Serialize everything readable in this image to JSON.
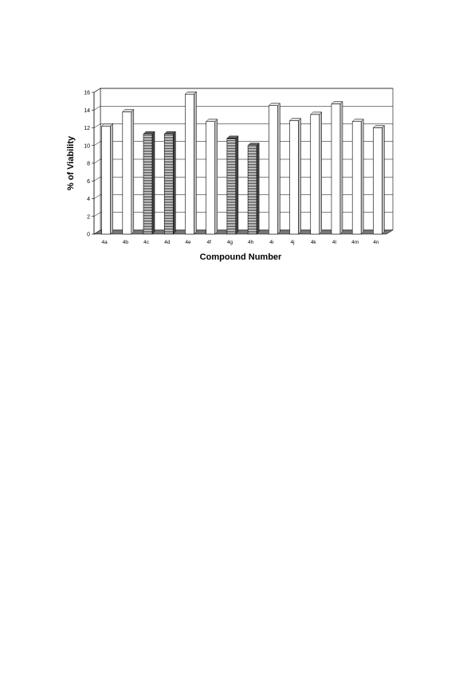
{
  "chart_data": {
    "type": "bar",
    "title": "",
    "xlabel": "Compound Number",
    "ylabel": "% of Viability",
    "ylim": [
      0,
      16
    ],
    "yticks": [
      0,
      2,
      4,
      6,
      8,
      10,
      12,
      14,
      16
    ],
    "grid": true,
    "style": "3d",
    "categories": [
      "4a",
      "4b",
      "4c",
      "4d",
      "4e",
      "4f",
      "4g",
      "4h",
      "4i",
      "4j",
      "4k",
      "4l",
      "4m",
      "4n"
    ],
    "values": [
      12.2,
      13.8,
      11.3,
      11.3,
      15.8,
      12.7,
      10.8,
      10.0,
      14.5,
      12.8,
      13.5,
      14.7,
      12.7,
      12.0
    ],
    "bar_fill": [
      "white",
      "white",
      "hatched",
      "hatched",
      "white",
      "white",
      "hatched",
      "hatched",
      "white",
      "white",
      "white",
      "white",
      "white",
      "white"
    ]
  },
  "colors": {
    "bar_white": "#ffffff",
    "bar_hatched": "#555555",
    "floor": "#777777",
    "grid": "#000000"
  }
}
